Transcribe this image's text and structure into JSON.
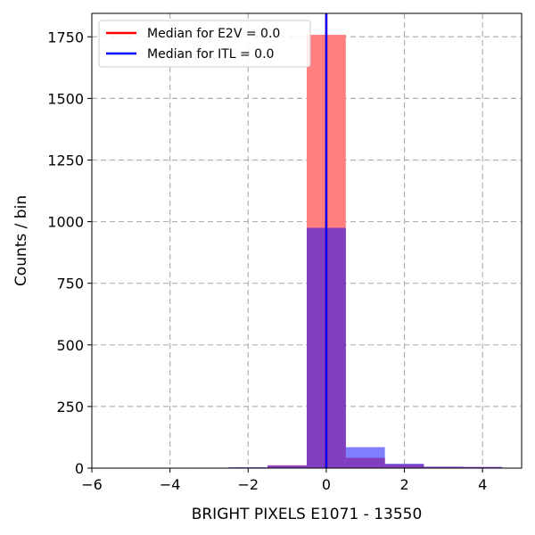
{
  "chart_data": {
    "type": "histogram",
    "title": "",
    "xlabel": "BRIGHT PIXELS E1071 - 13550",
    "ylabel": "Counts / bin",
    "xlim": [
      -6,
      5
    ],
    "ylim": [
      0,
      1845
    ],
    "xticks": [
      -6,
      -4,
      -2,
      0,
      2,
      4
    ],
    "xtick_labels": [
      "−6",
      "−4",
      "−2",
      "0",
      "2",
      "4"
    ],
    "yticks": [
      0,
      250,
      500,
      750,
      1000,
      1250,
      1500,
      1750
    ],
    "ytick_labels": [
      "0",
      "250",
      "500",
      "750",
      "1000",
      "1250",
      "1500",
      "1750"
    ],
    "grid": true,
    "legend_position": "top-left",
    "bin_edges": [
      -5.5,
      -4.5,
      -3.5,
      -2.5,
      -1.5,
      -0.5,
      0.5,
      1.5,
      2.5,
      3.5,
      4.5
    ],
    "series": [
      {
        "name": "E2V",
        "color": "#ff7f7f",
        "values": [
          0,
          0,
          1,
          2,
          12,
          1758,
          42,
          15,
          5,
          4
        ]
      },
      {
        "name": "ITL",
        "color": "#7f7fff",
        "values": [
          0,
          0,
          2,
          4,
          10,
          975,
          85,
          18,
          6,
          5
        ]
      }
    ],
    "overlap_color": "#7f3fbf",
    "median_lines": [
      {
        "label": "Median for E2V = 0.0",
        "x": 0.0,
        "color": "#ff0000"
      },
      {
        "label": "Median for ITL = 0.0",
        "x": 0.0,
        "color": "#0000ff"
      }
    ]
  }
}
